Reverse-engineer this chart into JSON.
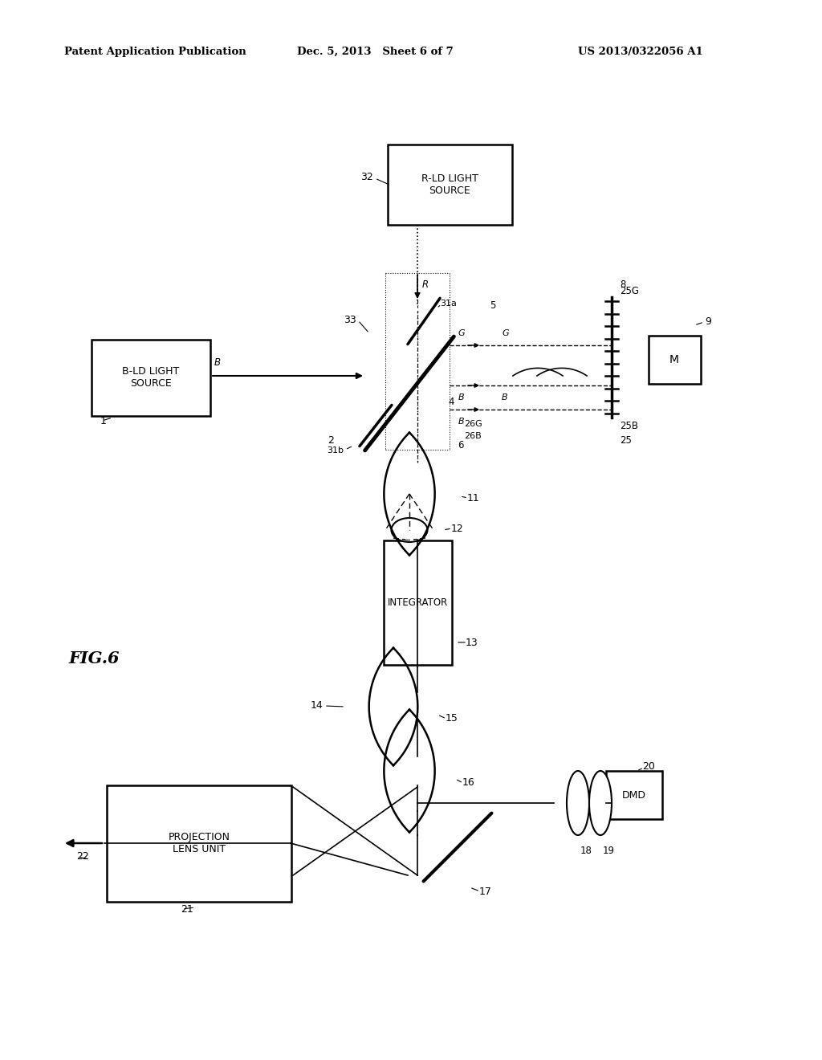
{
  "bg_color": "#ffffff",
  "fig_label": "FIG.6",
  "header_left": "Patent Application Publication",
  "header_mid": "Dec. 5, 2013   Sheet 6 of 7",
  "header_right": "US 2013/0322056 A1"
}
